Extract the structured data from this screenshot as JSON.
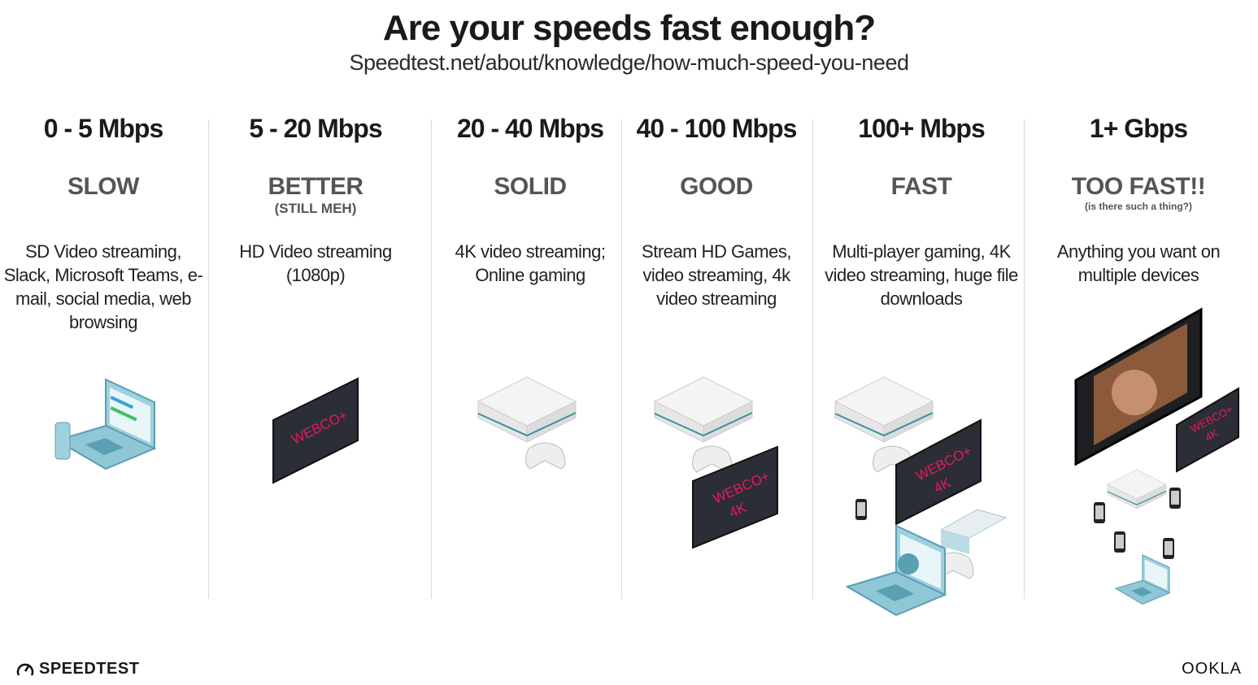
{
  "header": {
    "title": "Are your speeds fast enough?",
    "subtitle": "Speedtest.net/about/knowledge/how-much-speed-you-need"
  },
  "tiers": [
    {
      "speed": "0 - 5 Mbps",
      "label": "SLOW",
      "sublabel": "",
      "description": "SD Video streaming, Slack, Microsoft Teams, e-mail, social media, web browsing",
      "devices": [
        "laptop",
        "phone"
      ]
    },
    {
      "speed": "5 - 20 Mbps",
      "label": "BETTER",
      "sublabel": "(STILL MEH)",
      "description": "HD Video streaming (1080p)",
      "devices": [
        "tv"
      ]
    },
    {
      "speed": "20 - 40 Mbps",
      "label": "SOLID",
      "sublabel": "",
      "description": "4K video streaming; Online gaming",
      "devices": [
        "game-console",
        "controller"
      ]
    },
    {
      "speed": "40 - 100 Mbps",
      "label": "GOOD",
      "sublabel": "",
      "description": "Stream HD Games, video streaming, 4k video streaming",
      "devices": [
        "game-console",
        "controller",
        "tv-4k"
      ]
    },
    {
      "speed": "100+ Mbps",
      "label": "FAST",
      "sublabel": "",
      "description": "Multi-player gaming, 4K video streaming, huge file downloads",
      "devices": [
        "game-console",
        "controller",
        "tv-4k",
        "phone",
        "laptop",
        "console"
      ]
    },
    {
      "speed": "1+ Gbps",
      "label": "TOO FAST!!",
      "sublabel": "(is there such a thing?)",
      "description": "Anything you want on multiple devices",
      "devices": [
        "big-tv",
        "tv-4k",
        "game-console",
        "phones",
        "laptop"
      ]
    }
  ],
  "tv_brand": {
    "line1": "WEBCO+",
    "line2": "4K"
  },
  "colors": {
    "tv_text": "#e8195a",
    "device_teal": "#8fc7d6",
    "divider": "#d8d8d8",
    "label_gray": "#555555"
  },
  "footer": {
    "left_logo": "SPEEDTEST",
    "right_logo": "OOKLA"
  }
}
